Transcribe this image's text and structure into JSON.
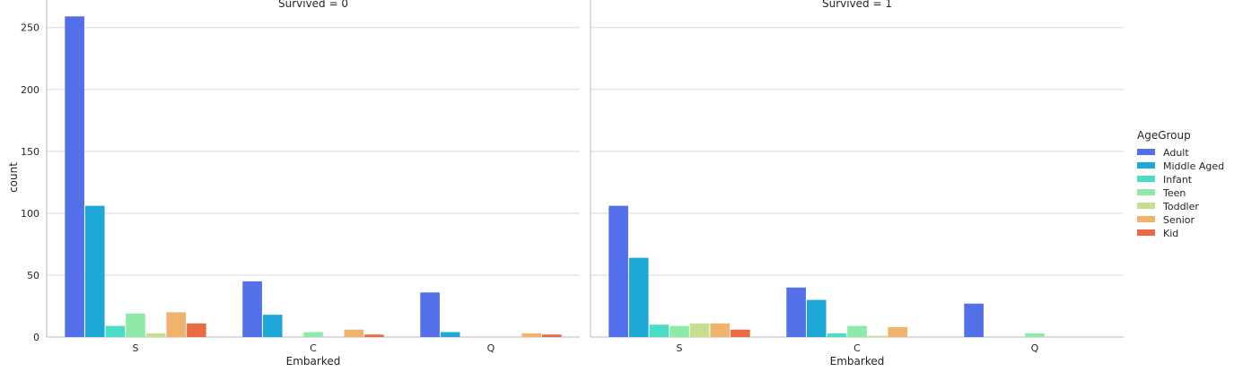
{
  "chart_data": {
    "type": "bar",
    "ylabel": "count",
    "xlabel": "Embarked",
    "ylim": [
      0,
      265
    ],
    "yticks": [
      0,
      50,
      100,
      150,
      200,
      250
    ],
    "categories": [
      "S",
      "C",
      "Q"
    ],
    "grid": true,
    "legend": {
      "title": "AgeGroup",
      "placement": "right"
    },
    "series": [
      {
        "name": "Adult",
        "color": "#5470e8"
      },
      {
        "name": "Middle Aged",
        "color": "#1ea8d8"
      },
      {
        "name": "Infant",
        "color": "#4bdcc4"
      },
      {
        "name": "Teen",
        "color": "#8eeaa8"
      },
      {
        "name": "Toddler",
        "color": "#c4df8e"
      },
      {
        "name": "Senior",
        "color": "#f0b36c"
      },
      {
        "name": "Kid",
        "color": "#ea6a44"
      }
    ],
    "panels": [
      {
        "title": "Survived = 0",
        "values": {
          "S": [
            259,
            106,
            9,
            19,
            3,
            20,
            11
          ],
          "C": [
            45,
            18,
            0,
            4,
            0,
            6,
            2
          ],
          "Q": [
            36,
            4,
            0,
            0,
            0,
            3,
            2
          ]
        }
      },
      {
        "title": "Survived = 1",
        "values": {
          "S": [
            106,
            64,
            10,
            9,
            11,
            11,
            6
          ],
          "C": [
            40,
            30,
            3,
            9,
            1,
            8,
            0
          ],
          "Q": [
            27,
            0,
            0,
            3,
            0,
            0,
            0
          ]
        }
      }
    ]
  }
}
